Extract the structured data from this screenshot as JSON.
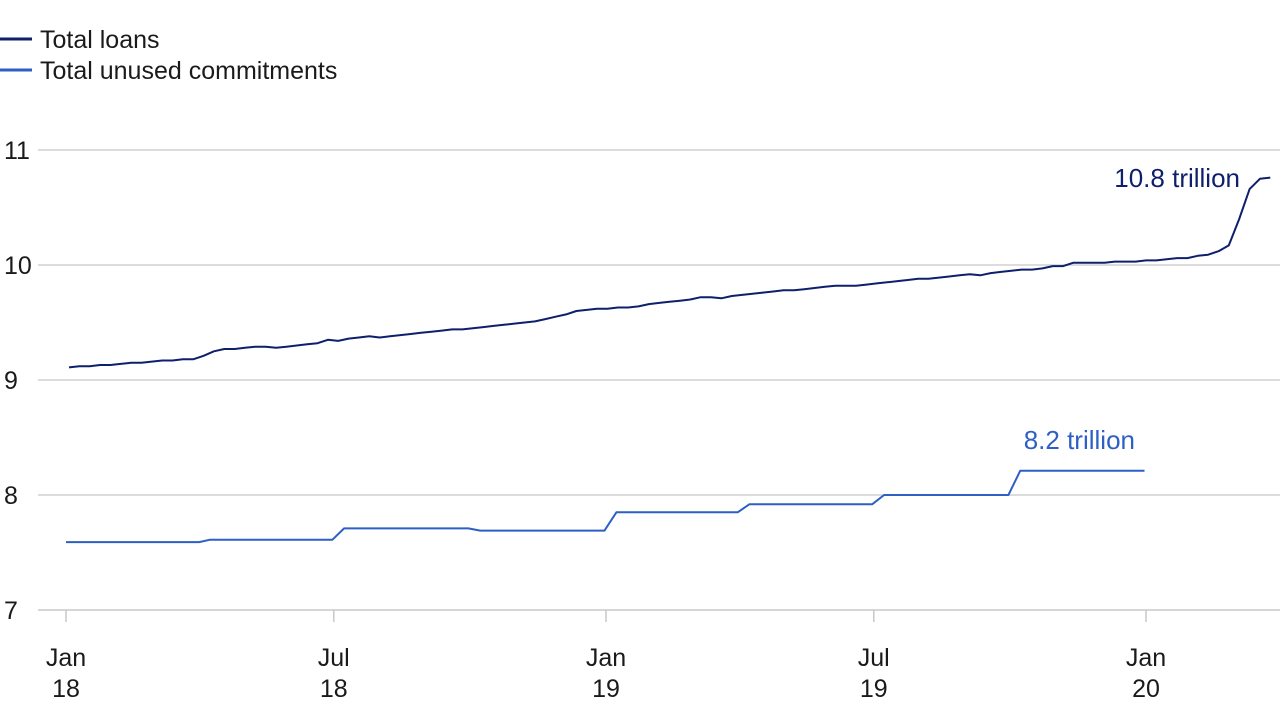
{
  "chart_data": {
    "type": "line",
    "title": "",
    "xlabel": "",
    "ylabel": "",
    "ylim": [
      7,
      11
    ],
    "yticks": [
      "7",
      "8",
      "9",
      "10",
      "11"
    ],
    "xticks": [
      {
        "month": "Jan",
        "year": "18"
      },
      {
        "month": "Jul",
        "year": "18"
      },
      {
        "month": "Jan",
        "year": "19"
      },
      {
        "month": "Jul",
        "year": "19"
      },
      {
        "month": "Jan",
        "year": "20"
      }
    ],
    "grid": true,
    "legend_position": "top-left",
    "series": [
      {
        "name": "Total loans",
        "color": "#0e1f6b",
        "annotation": "10.8 trillion",
        "points": [
          [
            "2018-01-03",
            9.11
          ],
          [
            "2018-01-10",
            9.12
          ],
          [
            "2018-01-17",
            9.12
          ],
          [
            "2018-01-24",
            9.13
          ],
          [
            "2018-01-31",
            9.13
          ],
          [
            "2018-02-07",
            9.14
          ],
          [
            "2018-02-14",
            9.15
          ],
          [
            "2018-02-21",
            9.15
          ],
          [
            "2018-02-28",
            9.16
          ],
          [
            "2018-03-07",
            9.17
          ],
          [
            "2018-03-14",
            9.17
          ],
          [
            "2018-03-21",
            9.18
          ],
          [
            "2018-03-28",
            9.18
          ],
          [
            "2018-04-04",
            9.21
          ],
          [
            "2018-04-11",
            9.25
          ],
          [
            "2018-04-18",
            9.27
          ],
          [
            "2018-04-25",
            9.27
          ],
          [
            "2018-05-02",
            9.28
          ],
          [
            "2018-05-09",
            9.29
          ],
          [
            "2018-05-16",
            9.29
          ],
          [
            "2018-05-23",
            9.28
          ],
          [
            "2018-05-30",
            9.29
          ],
          [
            "2018-06-06",
            9.3
          ],
          [
            "2018-06-13",
            9.31
          ],
          [
            "2018-06-20",
            9.32
          ],
          [
            "2018-06-27",
            9.35
          ],
          [
            "2018-07-04",
            9.34
          ],
          [
            "2018-07-11",
            9.36
          ],
          [
            "2018-07-18",
            9.37
          ],
          [
            "2018-07-25",
            9.38
          ],
          [
            "2018-08-01",
            9.37
          ],
          [
            "2018-08-08",
            9.38
          ],
          [
            "2018-08-15",
            9.39
          ],
          [
            "2018-08-22",
            9.4
          ],
          [
            "2018-08-29",
            9.41
          ],
          [
            "2018-09-05",
            9.42
          ],
          [
            "2018-09-12",
            9.43
          ],
          [
            "2018-09-19",
            9.44
          ],
          [
            "2018-09-26",
            9.44
          ],
          [
            "2018-10-03",
            9.45
          ],
          [
            "2018-10-10",
            9.46
          ],
          [
            "2018-10-17",
            9.47
          ],
          [
            "2018-10-24",
            9.48
          ],
          [
            "2018-10-31",
            9.49
          ],
          [
            "2018-11-07",
            9.5
          ],
          [
            "2018-11-14",
            9.51
          ],
          [
            "2018-11-21",
            9.53
          ],
          [
            "2018-11-28",
            9.55
          ],
          [
            "2018-12-05",
            9.57
          ],
          [
            "2018-12-12",
            9.6
          ],
          [
            "2018-12-19",
            9.61
          ],
          [
            "2018-12-26",
            9.62
          ],
          [
            "2019-01-02",
            9.62
          ],
          [
            "2019-01-09",
            9.63
          ],
          [
            "2019-01-16",
            9.63
          ],
          [
            "2019-01-23",
            9.64
          ],
          [
            "2019-01-30",
            9.66
          ],
          [
            "2019-02-06",
            9.67
          ],
          [
            "2019-02-13",
            9.68
          ],
          [
            "2019-02-20",
            9.69
          ],
          [
            "2019-02-27",
            9.7
          ],
          [
            "2019-03-06",
            9.72
          ],
          [
            "2019-03-13",
            9.72
          ],
          [
            "2019-03-20",
            9.71
          ],
          [
            "2019-03-27",
            9.73
          ],
          [
            "2019-04-03",
            9.74
          ],
          [
            "2019-04-10",
            9.75
          ],
          [
            "2019-04-17",
            9.76
          ],
          [
            "2019-04-24",
            9.77
          ],
          [
            "2019-05-01",
            9.78
          ],
          [
            "2019-05-08",
            9.78
          ],
          [
            "2019-05-15",
            9.79
          ],
          [
            "2019-05-22",
            9.8
          ],
          [
            "2019-05-29",
            9.81
          ],
          [
            "2019-06-05",
            9.82
          ],
          [
            "2019-06-12",
            9.82
          ],
          [
            "2019-06-19",
            9.82
          ],
          [
            "2019-06-26",
            9.83
          ],
          [
            "2019-07-03",
            9.84
          ],
          [
            "2019-07-10",
            9.85
          ],
          [
            "2019-07-17",
            9.86
          ],
          [
            "2019-07-24",
            9.87
          ],
          [
            "2019-07-31",
            9.88
          ],
          [
            "2019-08-07",
            9.88
          ],
          [
            "2019-08-14",
            9.89
          ],
          [
            "2019-08-21",
            9.9
          ],
          [
            "2019-08-28",
            9.91
          ],
          [
            "2019-09-04",
            9.92
          ],
          [
            "2019-09-11",
            9.91
          ],
          [
            "2019-09-18",
            9.93
          ],
          [
            "2019-09-25",
            9.94
          ],
          [
            "2019-10-02",
            9.95
          ],
          [
            "2019-10-09",
            9.96
          ],
          [
            "2019-10-16",
            9.96
          ],
          [
            "2019-10-23",
            9.97
          ],
          [
            "2019-10-30",
            9.99
          ],
          [
            "2019-11-06",
            9.99
          ],
          [
            "2019-11-13",
            10.02
          ],
          [
            "2019-11-20",
            10.02
          ],
          [
            "2019-11-27",
            10.02
          ],
          [
            "2019-12-04",
            10.02
          ],
          [
            "2019-12-11",
            10.03
          ],
          [
            "2019-12-18",
            10.03
          ],
          [
            "2019-12-25",
            10.03
          ],
          [
            "2020-01-01",
            10.04
          ],
          [
            "2020-01-08",
            10.04
          ],
          [
            "2020-01-15",
            10.05
          ],
          [
            "2020-01-22",
            10.06
          ],
          [
            "2020-01-29",
            10.06
          ],
          [
            "2020-02-05",
            10.08
          ],
          [
            "2020-02-12",
            10.09
          ],
          [
            "2020-02-19",
            10.12
          ],
          [
            "2020-02-26",
            10.17
          ],
          [
            "2020-03-04",
            10.4
          ],
          [
            "2020-03-11",
            10.66
          ],
          [
            "2020-03-18",
            10.75
          ],
          [
            "2020-03-25",
            10.76
          ]
        ]
      },
      {
        "name": "Total unused commitments",
        "color": "#2d5fc4",
        "annotation": "8.2 trillion",
        "points": [
          [
            "2018-01-01",
            7.59
          ],
          [
            "2018-04-01",
            7.59
          ],
          [
            "2018-04-08",
            7.61
          ],
          [
            "2018-06-30",
            7.61
          ],
          [
            "2018-07-08",
            7.71
          ],
          [
            "2018-09-30",
            7.71
          ],
          [
            "2018-10-08",
            7.69
          ],
          [
            "2018-12-31",
            7.69
          ],
          [
            "2019-01-08",
            7.85
          ],
          [
            "2019-03-31",
            7.85
          ],
          [
            "2019-04-08",
            7.92
          ],
          [
            "2019-06-30",
            7.92
          ],
          [
            "2019-07-08",
            8.0
          ],
          [
            "2019-09-30",
            8.0
          ],
          [
            "2019-10-08",
            8.21
          ],
          [
            "2019-12-31",
            8.21
          ]
        ]
      }
    ],
    "x_domain": [
      "2018-01-01",
      "2020-03-31"
    ]
  }
}
